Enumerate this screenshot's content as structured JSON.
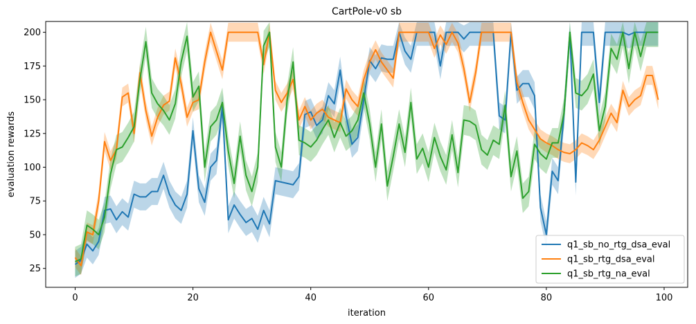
{
  "chart_data": {
    "type": "line",
    "title": "CartPole-v0 sb",
    "xlabel": "iteration",
    "ylabel": "evaluation rewards",
    "xlim": [
      -5,
      104
    ],
    "ylim": [
      11,
      208
    ],
    "xticks": [
      0,
      20,
      40,
      60,
      80,
      100
    ],
    "yticks": [
      25,
      50,
      75,
      100,
      125,
      150,
      175,
      200
    ],
    "grid": false,
    "legend_position": "lower-right",
    "series": [
      {
        "name": "q1_sb_no_rtg_dsa_eval",
        "color": "#1f77b4",
        "band": 10,
        "values": [
          28,
          31,
          43,
          38,
          45,
          68,
          69,
          61,
          67,
          63,
          80,
          78,
          78,
          82,
          82,
          94,
          80,
          72,
          68,
          80,
          127,
          84,
          74,
          100,
          105,
          145,
          61,
          72,
          65,
          59,
          62,
          54,
          68,
          58,
          90,
          89,
          88,
          87,
          93,
          139,
          141,
          131,
          135,
          153,
          147,
          172,
          138,
          117,
          122,
          150,
          179,
          173,
          181,
          180,
          180,
          200,
          186,
          180,
          200,
          200,
          200,
          200,
          175,
          200,
          200,
          200,
          195,
          200,
          200,
          200,
          200,
          200,
          138,
          135,
          200,
          157,
          162,
          162,
          153,
          70,
          50,
          97,
          90,
          140,
          200,
          89,
          200,
          200,
          200,
          148,
          200,
          200,
          200,
          200,
          198,
          200,
          200,
          200,
          200,
          200
        ]
      },
      {
        "name": "q1_sb_rtg_dsa_eval",
        "color": "#ff7f0e",
        "band": 7,
        "values": [
          33,
          27,
          52,
          50,
          75,
          119,
          105,
          113,
          152,
          155,
          125,
          170,
          142,
          123,
          137,
          146,
          149,
          181,
          162,
          137,
          148,
          150,
          178,
          200,
          186,
          172,
          200,
          200,
          200,
          200,
          200,
          200,
          176,
          200,
          157,
          148,
          155,
          165,
          135,
          145,
          135,
          140,
          143,
          137,
          135,
          133,
          158,
          150,
          145,
          165,
          178,
          187,
          178,
          172,
          166,
          200,
          200,
          200,
          200,
          200,
          200,
          188,
          198,
          191,
          200,
          192,
          173,
          148,
          170,
          200,
          200,
          200,
          200,
          200,
          200,
          163,
          148,
          135,
          128,
          121,
          118,
          116,
          113,
          111,
          110,
          113,
          118,
          116,
          113,
          120,
          130,
          140,
          133,
          157,
          145,
          150,
          153,
          168,
          168,
          150
        ]
      },
      {
        "name": "q1_sb_rtg_na_eval",
        "color": "#2ca02c",
        "band": 11,
        "values": [
          30,
          32,
          57,
          54,
          50,
          63,
          95,
          113,
          115,
          122,
          130,
          165,
          193,
          155,
          147,
          142,
          135,
          147,
          178,
          197,
          152,
          160,
          100,
          130,
          135,
          148,
          112,
          88,
          123,
          94,
          82,
          100,
          190,
          200,
          115,
          100,
          150,
          178,
          120,
          118,
          115,
          120,
          128,
          135,
          122,
          133,
          123,
          127,
          135,
          155,
          132,
          100,
          132,
          86,
          108,
          132,
          111,
          148,
          106,
          114,
          100,
          122,
          108,
          98,
          124,
          96,
          135,
          134,
          131,
          113,
          109,
          120,
          117,
          146,
          93,
          112,
          77,
          82,
          117,
          110,
          106,
          118,
          118,
          140,
          200,
          155,
          153,
          158,
          169,
          127,
          145,
          188,
          180,
          200,
          173,
          200,
          182,
          200,
          200,
          200
        ]
      }
    ]
  }
}
